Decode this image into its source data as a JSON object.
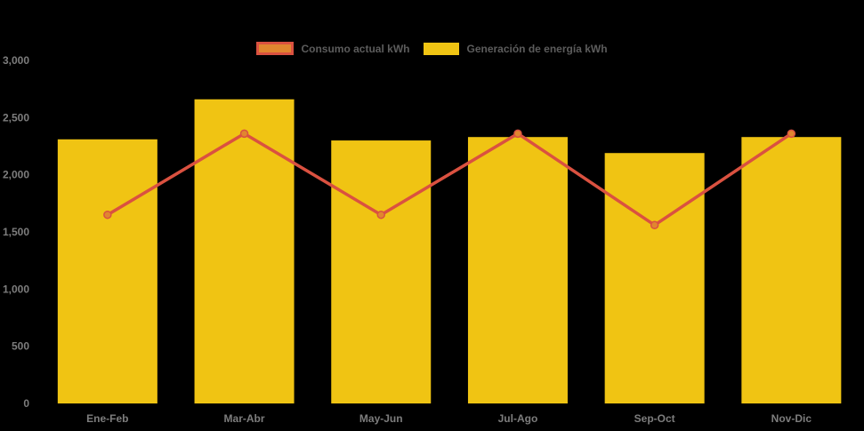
{
  "chart_data": {
    "type": "combo",
    "title": "",
    "categories": [
      "Ene-Feb",
      "Mar-Abr",
      "May-Jun",
      "Jul-Ago",
      "Sep-Oct",
      "Nov-Dic"
    ],
    "series": [
      {
        "name": "Consumo actual kWh",
        "type": "line",
        "color": "#da5140",
        "point_color": "#e1862f",
        "values": [
          1650,
          2360,
          1650,
          2360,
          1560,
          2360
        ]
      },
      {
        "name": "Generación de energía kWh",
        "type": "bar",
        "color": "#f0c413",
        "values": [
          2310,
          2660,
          2300,
          2330,
          2190,
          2330
        ]
      }
    ],
    "xlabel": "",
    "ylabel": "",
    "ylim": [
      0,
      3000
    ],
    "y_tick_step": 500,
    "y_ticks": [
      "0",
      "500",
      "1,000",
      "1,500",
      "2,000",
      "2,500",
      "3,000"
    ],
    "grid": false,
    "legend_position": "top",
    "colors": {
      "background": "#000000",
      "bar": "#f0c413",
      "line": "#da5140",
      "point_fill": "#e1862f",
      "axis_text": "#7d7d7d",
      "legend_text": "#5c5c5c"
    }
  }
}
